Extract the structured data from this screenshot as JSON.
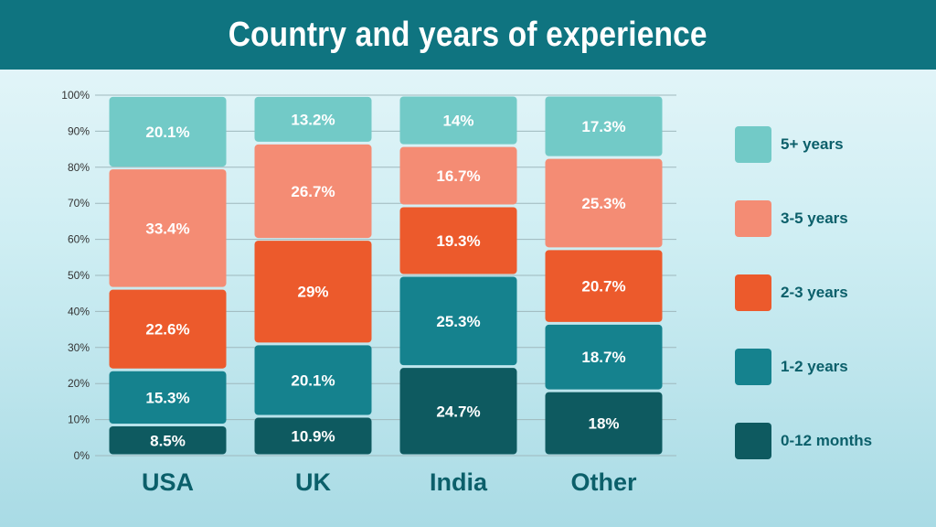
{
  "chart_data": {
    "type": "bar",
    "stacked": true,
    "title": "Country and years of experience",
    "categories": [
      "USA",
      "UK",
      "India",
      "Other"
    ],
    "ylim": [
      0,
      100
    ],
    "yticks": [
      "0%",
      "10%",
      "20%",
      "30%",
      "40%",
      "50%",
      "60%",
      "70%",
      "80%",
      "90%",
      "100%"
    ],
    "grid": true,
    "legend_position": "right",
    "series": [
      {
        "name": "0-12 months",
        "color": "#0e5a60",
        "label_color": "#ffffff",
        "values": [
          8.5,
          10.9,
          24.7,
          18
        ],
        "labels": [
          "8.5%",
          "10.9%",
          "24.7%",
          "18%"
        ]
      },
      {
        "name": "1-2 years",
        "color": "#15828e",
        "label_color": "#ffffff",
        "values": [
          15.3,
          20.1,
          25.3,
          18.7
        ],
        "labels": [
          "15.3%",
          "20.1%",
          "25.3%",
          "18.7%"
        ]
      },
      {
        "name": "2-3 years",
        "color": "#ec5a2c",
        "label_color": "#ffffff",
        "values": [
          22.6,
          29,
          19.3,
          20.7
        ],
        "labels": [
          "22.6%",
          "29%",
          "19.3%",
          "20.7%"
        ]
      },
      {
        "name": "3-5 years",
        "color": "#f48c74",
        "label_color": "#ffffff",
        "values": [
          33.4,
          26.7,
          16.7,
          25.3
        ],
        "labels": [
          "33.4%",
          "26.7%",
          "16.7%",
          "25.3%"
        ]
      },
      {
        "name": "5+ years",
        "color": "#72cac7",
        "label_color": "#ffffff",
        "values": [
          20.1,
          13.2,
          14,
          17.3
        ],
        "labels": [
          "20.1%",
          "13.2%",
          "14%",
          "17.3%"
        ]
      }
    ]
  }
}
